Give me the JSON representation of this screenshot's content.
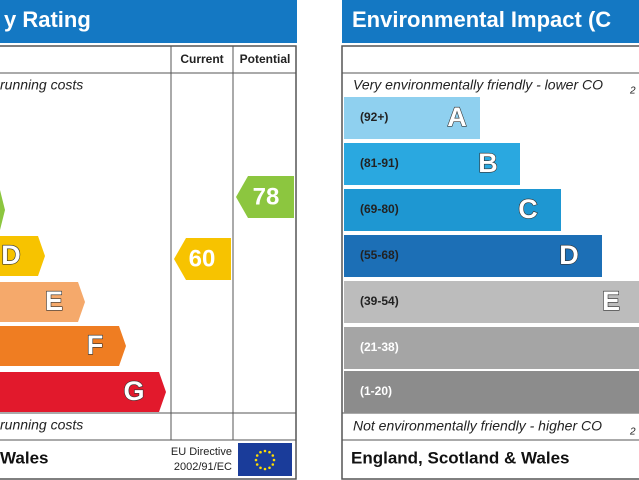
{
  "left": {
    "title": "y Rating",
    "headers": [
      "Current",
      "Potential"
    ],
    "top_note": "running costs",
    "bands": [
      "D",
      "E",
      "F",
      "G"
    ],
    "bottom_note": "running costs",
    "footer": "Wales",
    "directive": [
      "EU Directive",
      "2002/91/EC"
    ],
    "current": 60,
    "potential": 78
  },
  "right": {
    "title": "Environmental Impact (C",
    "top_note": "Very environmentally friendly - lower CO",
    "top_note_sub": "2",
    "bands": [
      {
        "range": "(92+)",
        "letter": "A"
      },
      {
        "range": "(81-91)",
        "letter": "B"
      },
      {
        "range": "(69-80)",
        "letter": "C"
      },
      {
        "range": "(55-68)",
        "letter": "D"
      },
      {
        "range": "(39-54)",
        "letter": "E"
      },
      {
        "range": "(21-38)"
      },
      {
        "range": "(1-20)"
      }
    ],
    "bottom_note": "Not environmentally friendly - higher CO",
    "bottom_note_sub": "2",
    "footer": "England, Scotland & Wales"
  }
}
